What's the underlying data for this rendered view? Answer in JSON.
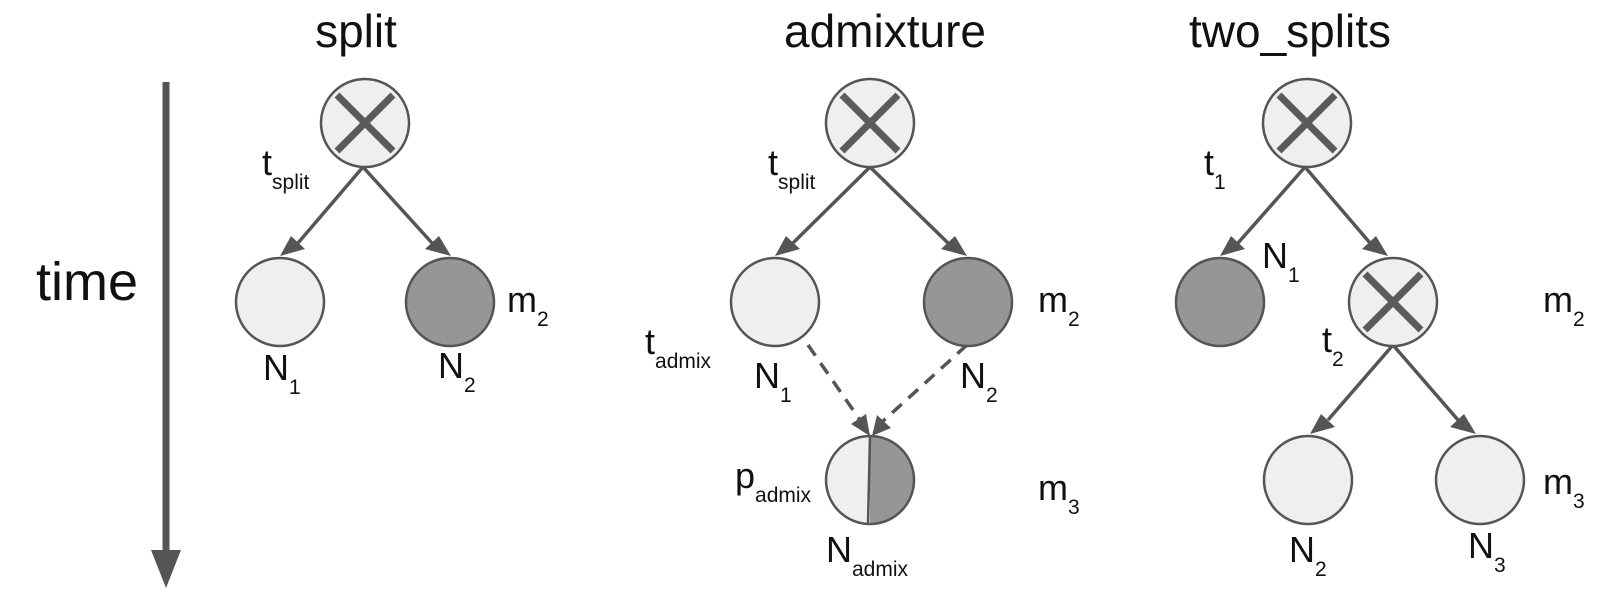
{
  "axis": {
    "label": "time"
  },
  "panels": {
    "split": {
      "title": "split",
      "t_split": {
        "base": "t",
        "sub": "split"
      },
      "n1": {
        "base": "N",
        "sub": "1"
      },
      "n2": {
        "base": "N",
        "sub": "2"
      },
      "m2": {
        "base": "m",
        "sub": "2"
      }
    },
    "admixture": {
      "title": "admixture",
      "t_split": {
        "base": "t",
        "sub": "split"
      },
      "t_admix": {
        "base": "t",
        "sub": "admix"
      },
      "n1": {
        "base": "N",
        "sub": "1"
      },
      "n2": {
        "base": "N",
        "sub": "2"
      },
      "m2": {
        "base": "m",
        "sub": "2"
      },
      "p_admix": {
        "base": "p",
        "sub": "admix"
      },
      "n_admix": {
        "base": "N",
        "sub": "admix"
      },
      "m3": {
        "base": "m",
        "sub": "3"
      }
    },
    "two_splits": {
      "title": "two_splits",
      "t1": {
        "base": "t",
        "sub": "1"
      },
      "t2": {
        "base": "t",
        "sub": "2"
      },
      "n1": {
        "base": "N",
        "sub": "1"
      },
      "n2": {
        "base": "N",
        "sub": "2"
      },
      "n3": {
        "base": "N",
        "sub": "3"
      },
      "m2": {
        "base": "m",
        "sub": "2"
      },
      "m3": {
        "base": "m",
        "sub": "3"
      }
    }
  },
  "colors": {
    "light_node": "#efefef",
    "dark_node": "#969696",
    "edge": "#555555"
  }
}
